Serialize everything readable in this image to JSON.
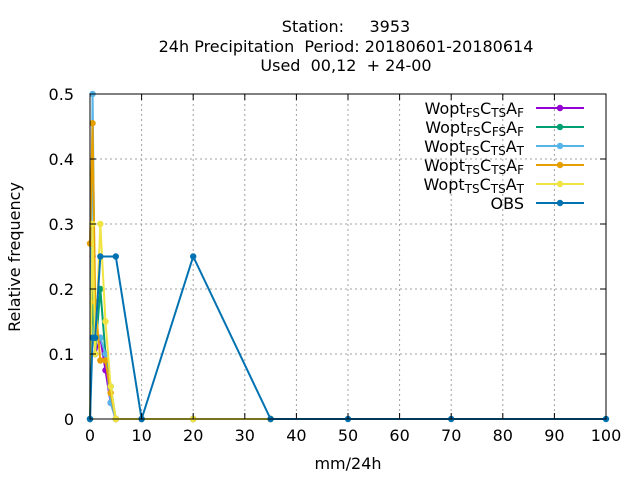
{
  "chart_data": {
    "type": "line",
    "title_lines": [
      "Station:     3953",
      "24h Precipitation  Period: 20180601-20180614",
      "Used  00,12  + 24-00"
    ],
    "xlabel": "mm/24h",
    "ylabel": "Relative frequency",
    "xlim": [
      0,
      100
    ],
    "ylim": [
      0,
      0.5
    ],
    "xticks": [
      0,
      10,
      20,
      30,
      40,
      50,
      60,
      70,
      80,
      90,
      100
    ],
    "yticks": [
      0,
      0.1,
      0.2,
      0.3,
      0.4,
      0.5
    ],
    "xtick_labels": [
      "0",
      "10",
      "20",
      "30",
      "40",
      "50",
      "60",
      "70",
      "80",
      "90",
      "100"
    ],
    "ytick_labels": [
      "0",
      "0.1",
      "0.2",
      "0.3",
      "0.4",
      "0.5"
    ],
    "grid": true,
    "legend_position": "top-right",
    "series": [
      {
        "legend": [
          [
            "Wopt",
            ""
          ],
          [
            "FS",
            "sub"
          ],
          [
            "C",
            ""
          ],
          [
            "TS",
            "sub"
          ],
          [
            "A",
            ""
          ],
          [
            "F",
            "sub"
          ]
        ],
        "color": "#9400d3",
        "points": [
          [
            0,
            0
          ],
          [
            0.5,
            0.25
          ],
          [
            1,
            0.1
          ],
          [
            2,
            0.125
          ],
          [
            3,
            0.075
          ],
          [
            4,
            0.025
          ],
          [
            5,
            0
          ],
          [
            10,
            0
          ],
          [
            20,
            0
          ],
          [
            35,
            0
          ]
        ]
      },
      {
        "legend": [
          [
            "Wopt",
            ""
          ],
          [
            "FS",
            "sub"
          ],
          [
            "C",
            ""
          ],
          [
            "FS",
            "sub"
          ],
          [
            "A",
            ""
          ],
          [
            "F",
            "sub"
          ]
        ],
        "color": "#009e73",
        "points": [
          [
            0,
            0
          ],
          [
            0.5,
            0.2
          ],
          [
            1,
            0.1
          ],
          [
            2,
            0.2
          ],
          [
            3,
            0.1
          ],
          [
            4,
            0.05
          ],
          [
            5,
            0
          ],
          [
            10,
            0
          ],
          [
            20,
            0
          ],
          [
            35,
            0
          ]
        ]
      },
      {
        "legend": [
          [
            "Wopt",
            ""
          ],
          [
            "FS",
            "sub"
          ],
          [
            "C",
            ""
          ],
          [
            "TS",
            "sub"
          ],
          [
            "A",
            ""
          ],
          [
            "T",
            "sub"
          ]
        ],
        "color": "#56b4e9",
        "points": [
          [
            0,
            0
          ],
          [
            0.5,
            0.5
          ],
          [
            1,
            0.125
          ],
          [
            2,
            0.125
          ],
          [
            3,
            0.1
          ],
          [
            4,
            0.025
          ],
          [
            5,
            0
          ],
          [
            10,
            0
          ],
          [
            20,
            0
          ],
          [
            35,
            0
          ]
        ]
      },
      {
        "legend": [
          [
            "Wopt",
            ""
          ],
          [
            "TS",
            "sub"
          ],
          [
            "C",
            ""
          ],
          [
            "TS",
            "sub"
          ],
          [
            "A",
            ""
          ],
          [
            "F",
            "sub"
          ]
        ],
        "color": "#e69f00",
        "points": [
          [
            0,
            0.27
          ],
          [
            0.5,
            0.455
          ],
          [
            1,
            0.18
          ],
          [
            2,
            0.09
          ],
          [
            3,
            0.09
          ],
          [
            4,
            0.04
          ],
          [
            5,
            0
          ],
          [
            10,
            0
          ],
          [
            20,
            0
          ],
          [
            35,
            0
          ]
        ]
      },
      {
        "legend": [
          [
            "Wopt",
            ""
          ],
          [
            "TS",
            "sub"
          ],
          [
            "C",
            ""
          ],
          [
            "TS",
            "sub"
          ],
          [
            "A",
            ""
          ],
          [
            "T",
            "sub"
          ]
        ],
        "color": "#f0e442",
        "points": [
          [
            0,
            0
          ],
          [
            0.5,
            0.3
          ],
          [
            1,
            0.1
          ],
          [
            2,
            0.3
          ],
          [
            3,
            0.15
          ],
          [
            4,
            0.05
          ],
          [
            5,
            0
          ],
          [
            10,
            0
          ],
          [
            20,
            0
          ],
          [
            35,
            0
          ]
        ]
      },
      {
        "legend": [
          [
            "OBS",
            ""
          ]
        ],
        "color": "#0072b2",
        "points": [
          [
            0,
            0
          ],
          [
            0.5,
            0.125
          ],
          [
            1,
            0.125
          ],
          [
            2,
            0.25
          ],
          [
            5,
            0.25
          ],
          [
            10,
            0
          ],
          [
            20,
            0.25
          ],
          [
            35,
            0
          ],
          [
            50,
            0
          ],
          [
            70,
            0
          ],
          [
            100,
            0
          ]
        ]
      }
    ]
  }
}
